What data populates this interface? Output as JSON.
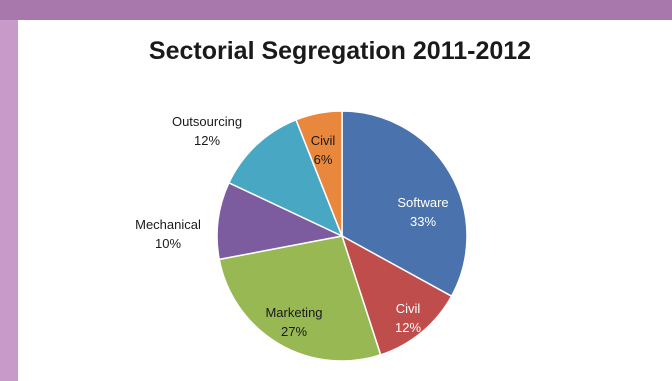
{
  "chart_data": {
    "type": "pie",
    "title": "Sectorial Segregation 2011-2012",
    "slices": [
      {
        "label": "Software",
        "percent_text": "33%",
        "value": 33,
        "color": "#4a72ad",
        "text_color": "#ffffff"
      },
      {
        "label": "Civil",
        "percent_text": "12%",
        "value": 12,
        "color": "#bf4d4b",
        "text_color": "#ffffff"
      },
      {
        "label": "Marketing",
        "percent_text": "27%",
        "value": 27,
        "color": "#98b853",
        "text_color": "#1a1a1a"
      },
      {
        "label": "Mechanical",
        "percent_text": "10%",
        "value": 10,
        "color": "#7c5c9e",
        "text_color": "#1a1a1a"
      },
      {
        "label": "Outsourcing",
        "percent_text": "12%",
        "value": 12,
        "color": "#48a8c4",
        "text_color": "#1a1a1a"
      },
      {
        "label": "Civil",
        "percent_text": "6%",
        "value": 6,
        "color": "#e9873d",
        "text_color": "#1a1a1a"
      }
    ],
    "start_angle_deg": 0,
    "direction": "clockwise",
    "legend": "none"
  }
}
